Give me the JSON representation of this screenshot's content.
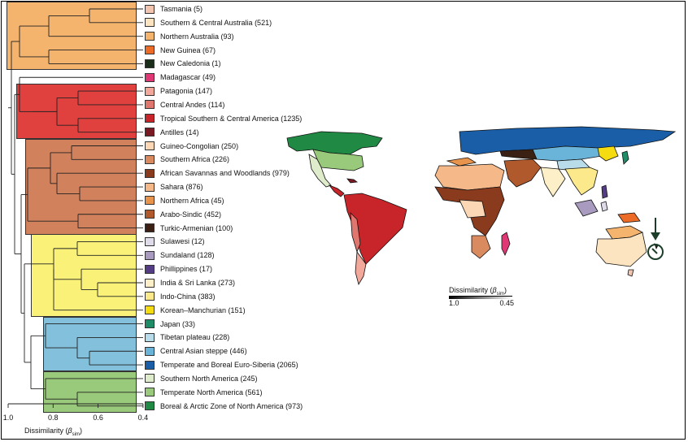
{
  "regions": [
    {
      "label": "Tasmania (5)",
      "color": "#f2c5b1"
    },
    {
      "label": "Southern & Central Australia (521)",
      "color": "#fde4c0"
    },
    {
      "label": "Northern Australia (93)",
      "color": "#f5b46e"
    },
    {
      "label": "New Guinea (67)",
      "color": "#ec6b26"
    },
    {
      "label": "New Caledonia (1)",
      "color": "#1b2e1a"
    },
    {
      "label": "Madagascar (49)",
      "color": "#e03775"
    },
    {
      "label": "Patagonia (147)",
      "color": "#f2a89a"
    },
    {
      "label": "Central Andes (114)",
      "color": "#e0776f"
    },
    {
      "label": "Tropical Southern & Central America (1235)",
      "color": "#c8252b"
    },
    {
      "label": "Antilles (14)",
      "color": "#7a1a22"
    },
    {
      "label": "Guineo-Congolian (250)",
      "color": "#fbd7b5"
    },
    {
      "label": "Southern Africa (226)",
      "color": "#d98b5f"
    },
    {
      "label": "African Savannas and Woodlands (979)",
      "color": "#8a3b1e"
    },
    {
      "label": "Sahara (876)",
      "color": "#f5b889"
    },
    {
      "label": "Northern Africa (45)",
      "color": "#e9944c"
    },
    {
      "label": "Arabo-Sindic (452)",
      "color": "#b0592c"
    },
    {
      "label": "Turkic-Armenian (100)",
      "color": "#3b2014"
    },
    {
      "label": "Sulawesi (12)",
      "color": "#e0dbe8"
    },
    {
      "label": "Sundaland (128)",
      "color": "#a99bbf"
    },
    {
      "label": "Phillippines (17)",
      "color": "#553d85"
    },
    {
      "label": "India & Sri Lanka (273)",
      "color": "#fdf0c8"
    },
    {
      "label": "Indo-China (383)",
      "color": "#fbe98c"
    },
    {
      "label": "Korean–Manchurian (151)",
      "color": "#f5dc10"
    },
    {
      "label": "Japan (33)",
      "color": "#1d8c67"
    },
    {
      "label": "Tibetan plateau (228)",
      "color": "#b8dcea"
    },
    {
      "label": "Central Asian steppe (446)",
      "color": "#6ab4d9"
    },
    {
      "label": "Temperate and Boreal Euro-Siberia (2065)",
      "color": "#1a5ea8"
    },
    {
      "label": "Southern North America (245)",
      "color": "#dfeccb"
    },
    {
      "label": "Temperate North America (561)",
      "color": "#99c97a"
    },
    {
      "label": "Boreal & Arctic Zone of North America (973)",
      "color": "#208a45"
    }
  ],
  "clusters": [
    {
      "name": "cluster-australasia",
      "color": "#f5b46e"
    },
    {
      "name": "cluster-south-america",
      "color": "#e0403e"
    },
    {
      "name": "cluster-africa",
      "color": "#d1825c"
    },
    {
      "name": "cluster-asia",
      "color": "#faf278"
    },
    {
      "name": "cluster-eurasia",
      "color": "#82c0dc"
    },
    {
      "name": "cluster-north-america",
      "color": "#99c97a"
    }
  ],
  "axis": {
    "ticks": [
      "1.0",
      "0.8",
      "0.6",
      "0.4"
    ],
    "title_main": "Dissimilarity (",
    "title_beta": "β",
    "title_sub": "sim",
    "title_end": ")"
  },
  "map_legend": {
    "title_main": "Dissimilarity (",
    "title_beta": "β",
    "title_sub": "sim",
    "title_end": ")",
    "min": "1.0",
    "max": "0.45"
  },
  "ocean_color": "#ffffff",
  "border_color": "#111111"
}
